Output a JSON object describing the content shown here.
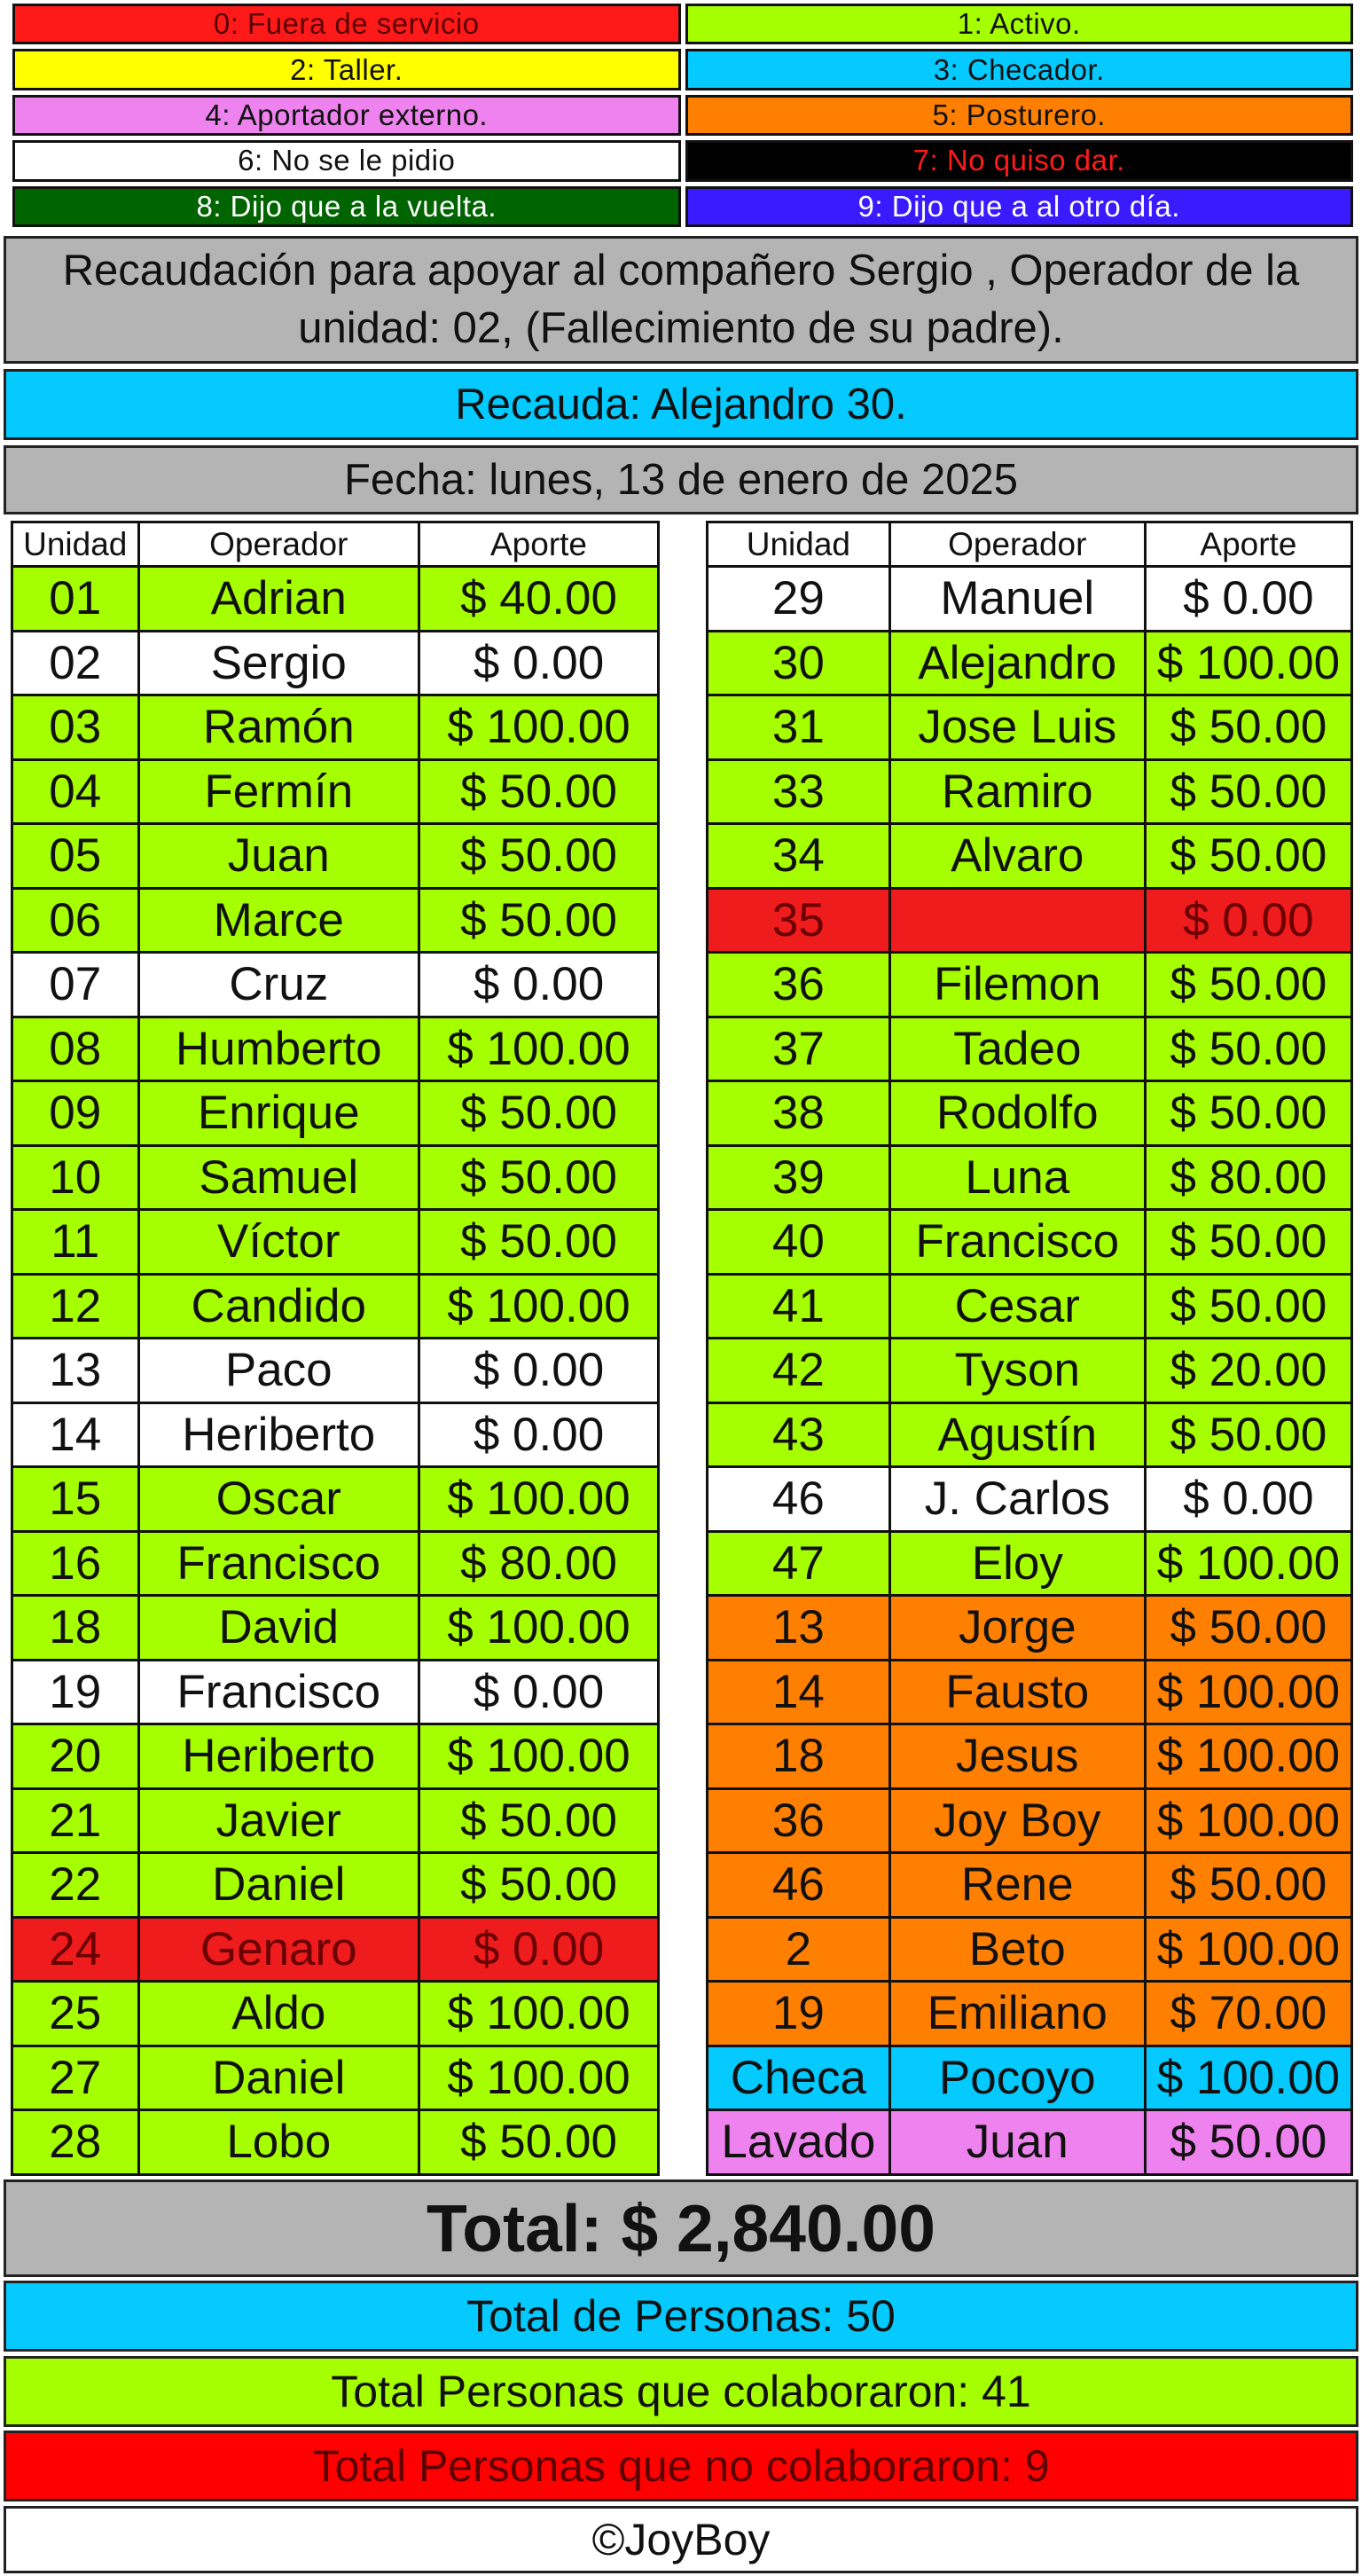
{
  "legend": [
    {
      "label": "0: Fuera de servicio",
      "bg": "#ff1a1a",
      "fg": "#5a0000"
    },
    {
      "label": "1: Activo.",
      "bg": "#a6ff00",
      "fg": "#111111"
    },
    {
      "label": "2: Taller.",
      "bg": "#ffff00",
      "fg": "#111111"
    },
    {
      "label": "3: Checador.",
      "bg": "#04caff",
      "fg": "#111111"
    },
    {
      "label": "4: Aportador externo.",
      "bg": "#ee82ee",
      "fg": "#111111"
    },
    {
      "label": "5: Posturero.",
      "bg": "#ff8000",
      "fg": "#111111"
    },
    {
      "label": "6: No se le pidio",
      "bg": "#ffffff",
      "fg": "#111111"
    },
    {
      "label": "7: No quiso dar.",
      "bg": "#000000",
      "fg": "#ff1a1a"
    },
    {
      "label": "8: Dijo que a la vuelta.",
      "bg": "#006400",
      "fg": "#ffffff"
    },
    {
      "label": "9: Dijo que a al otro día.",
      "bg": "#3a1aff",
      "fg": "#ffffff"
    }
  ],
  "status_colors": {
    "active": "#a6ff00",
    "none": "#ffffff",
    "out": "#ee1c1c",
    "post": "#ff8000",
    "check": "#04caff",
    "external": "#ee82ee"
  },
  "header": {
    "title": "Recaudación para apoyar al compañero Sergio , Operador de la unidad: 02, (Fallecimiento de su padre).",
    "collector": "Recauda: Alejandro 30.",
    "date": "Fecha: lunes, 13 de enero de 2025"
  },
  "columns": {
    "unit": "Unidad",
    "operator": "Operador",
    "contribution": "Aporte"
  },
  "left_rows": [
    {
      "unit": "01",
      "operator": "Adrian",
      "contribution": "$ 40.00",
      "status": "active"
    },
    {
      "unit": "02",
      "operator": "Sergio",
      "contribution": "$ 0.00",
      "status": "none"
    },
    {
      "unit": "03",
      "operator": "Ramón",
      "contribution": "$ 100.00",
      "status": "active"
    },
    {
      "unit": "04",
      "operator": "Fermín",
      "contribution": "$ 50.00",
      "status": "active"
    },
    {
      "unit": "05",
      "operator": "Juan",
      "contribution": "$ 50.00",
      "status": "active"
    },
    {
      "unit": "06",
      "operator": "Marce",
      "contribution": "$ 50.00",
      "status": "active"
    },
    {
      "unit": "07",
      "operator": "Cruz",
      "contribution": "$ 0.00",
      "status": "none"
    },
    {
      "unit": "08",
      "operator": "Humberto",
      "contribution": "$ 100.00",
      "status": "active"
    },
    {
      "unit": "09",
      "operator": "Enrique",
      "contribution": "$ 50.00",
      "status": "active"
    },
    {
      "unit": "10",
      "operator": "Samuel",
      "contribution": "$ 50.00",
      "status": "active"
    },
    {
      "unit": "11",
      "operator": "Víctor",
      "contribution": "$ 50.00",
      "status": "active"
    },
    {
      "unit": "12",
      "operator": "Candido",
      "contribution": "$ 100.00",
      "status": "active"
    },
    {
      "unit": "13",
      "operator": "Paco",
      "contribution": "$ 0.00",
      "status": "none"
    },
    {
      "unit": "14",
      "operator": "Heriberto",
      "contribution": "$ 0.00",
      "status": "none"
    },
    {
      "unit": "15",
      "operator": "Oscar",
      "contribution": "$ 100.00",
      "status": "active"
    },
    {
      "unit": "16",
      "operator": "Francisco",
      "contribution": "$ 80.00",
      "status": "active"
    },
    {
      "unit": "18",
      "operator": "David",
      "contribution": "$ 100.00",
      "status": "active"
    },
    {
      "unit": "19",
      "operator": "Francisco",
      "contribution": "$ 0.00",
      "status": "none"
    },
    {
      "unit": "20",
      "operator": "Heriberto",
      "contribution": "$ 100.00",
      "status": "active"
    },
    {
      "unit": "21",
      "operator": "Javier",
      "contribution": "$ 50.00",
      "status": "active"
    },
    {
      "unit": "22",
      "operator": "Daniel",
      "contribution": "$ 50.00",
      "status": "active"
    },
    {
      "unit": "24",
      "operator": "Genaro",
      "contribution": "$ 0.00",
      "status": "out"
    },
    {
      "unit": "25",
      "operator": "Aldo",
      "contribution": "$ 100.00",
      "status": "active"
    },
    {
      "unit": "27",
      "operator": "Daniel",
      "contribution": "$ 100.00",
      "status": "active"
    },
    {
      "unit": "28",
      "operator": "Lobo",
      "contribution": "$ 50.00",
      "status": "active"
    }
  ],
  "right_rows": [
    {
      "unit": "29",
      "operator": "Manuel",
      "contribution": "$ 0.00",
      "status": "none"
    },
    {
      "unit": "30",
      "operator": "Alejandro",
      "contribution": "$ 100.00",
      "status": "active"
    },
    {
      "unit": "31",
      "operator": "Jose Luis",
      "contribution": "$ 50.00",
      "status": "active"
    },
    {
      "unit": "33",
      "operator": "Ramiro",
      "contribution": "$ 50.00",
      "status": "active"
    },
    {
      "unit": "34",
      "operator": "Alvaro",
      "contribution": "$ 50.00",
      "status": "active"
    },
    {
      "unit": "35",
      "operator": "",
      "contribution": "$ 0.00",
      "status": "out"
    },
    {
      "unit": "36",
      "operator": "Filemon",
      "contribution": "$ 50.00",
      "status": "active"
    },
    {
      "unit": "37",
      "operator": "Tadeo",
      "contribution": "$ 50.00",
      "status": "active"
    },
    {
      "unit": "38",
      "operator": "Rodolfo",
      "contribution": "$ 50.00",
      "status": "active"
    },
    {
      "unit": "39",
      "operator": "Luna",
      "contribution": "$ 80.00",
      "status": "active"
    },
    {
      "unit": "40",
      "operator": "Francisco",
      "contribution": "$ 50.00",
      "status": "active"
    },
    {
      "unit": "41",
      "operator": "Cesar",
      "contribution": "$ 50.00",
      "status": "active"
    },
    {
      "unit": "42",
      "operator": "Tyson",
      "contribution": "$ 20.00",
      "status": "active"
    },
    {
      "unit": "43",
      "operator": "Agustín",
      "contribution": "$ 50.00",
      "status": "active"
    },
    {
      "unit": "46",
      "operator": "J. Carlos",
      "contribution": "$ 0.00",
      "status": "none"
    },
    {
      "unit": "47",
      "operator": "Eloy",
      "contribution": "$ 100.00",
      "status": "active"
    },
    {
      "unit": "13",
      "operator": "Jorge",
      "contribution": "$ 50.00",
      "status": "post"
    },
    {
      "unit": "14",
      "operator": "Fausto",
      "contribution": "$ 100.00",
      "status": "post"
    },
    {
      "unit": "18",
      "operator": "Jesus",
      "contribution": "$ 100.00",
      "status": "post"
    },
    {
      "unit": "36",
      "operator": "Joy Boy",
      "contribution": "$ 100.00",
      "status": "post"
    },
    {
      "unit": "46",
      "operator": "Rene",
      "contribution": "$ 50.00",
      "status": "post"
    },
    {
      "unit": "2",
      "operator": "Beto",
      "contribution": "$ 100.00",
      "status": "post"
    },
    {
      "unit": "19",
      "operator": "Emiliano",
      "contribution": "$ 70.00",
      "status": "post"
    },
    {
      "unit": "Checa",
      "operator": "Pocoyo",
      "contribution": "$ 100.00",
      "status": "check"
    },
    {
      "unit": "Lavado",
      "operator": "Juan",
      "contribution": "$ 50.00",
      "status": "external"
    }
  ],
  "summary": {
    "total": "Total: $ 2,840.00",
    "total_persons": "Total de Personas: 50",
    "collaborated": "Total Personas que colaboraron: 41",
    "not_collaborated": "Total Personas que no colaboraron: 9",
    "credit": "©JoyBoy"
  }
}
